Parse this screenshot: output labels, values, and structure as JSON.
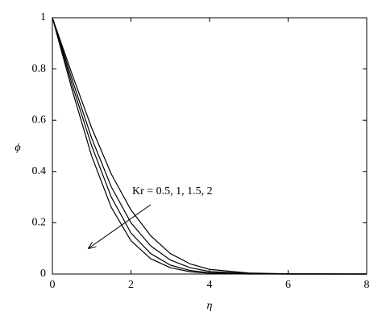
{
  "chart_data": {
    "type": "line",
    "xlabel": "η",
    "ylabel": "ϕ",
    "x": [
      0,
      0.5,
      1,
      1.5,
      2,
      2.5,
      3,
      3.5,
      4,
      5,
      6,
      8
    ],
    "series": [
      {
        "color": "#000000",
        "values": [
          1,
          0.78,
          0.57,
          0.39,
          0.25,
          0.15,
          0.08,
          0.04,
          0.018,
          0.004,
          0.001,
          0
        ]
      },
      {
        "color": "#000000",
        "values": [
          1,
          0.76,
          0.53,
          0.34,
          0.2,
          0.11,
          0.055,
          0.025,
          0.01,
          0.002,
          0,
          0
        ]
      },
      {
        "color": "#000000",
        "values": [
          1,
          0.74,
          0.5,
          0.3,
          0.16,
          0.08,
          0.035,
          0.014,
          0.005,
          0.001,
          0,
          0
        ]
      },
      {
        "color": "#000000",
        "values": [
          1,
          0.72,
          0.46,
          0.26,
          0.13,
          0.06,
          0.025,
          0.009,
          0.003,
          0,
          0,
          0
        ]
      }
    ],
    "annotations": [
      "Kr = 0.5, 1, 1.5, 2"
    ],
    "xlim": [
      0,
      8
    ],
    "xticks": [
      0,
      2,
      4,
      6,
      8
    ],
    "ylim": [
      0,
      1
    ],
    "yticks": [
      0,
      0.2,
      0.4,
      0.6,
      0.8,
      1
    ],
    "grid": false
  }
}
